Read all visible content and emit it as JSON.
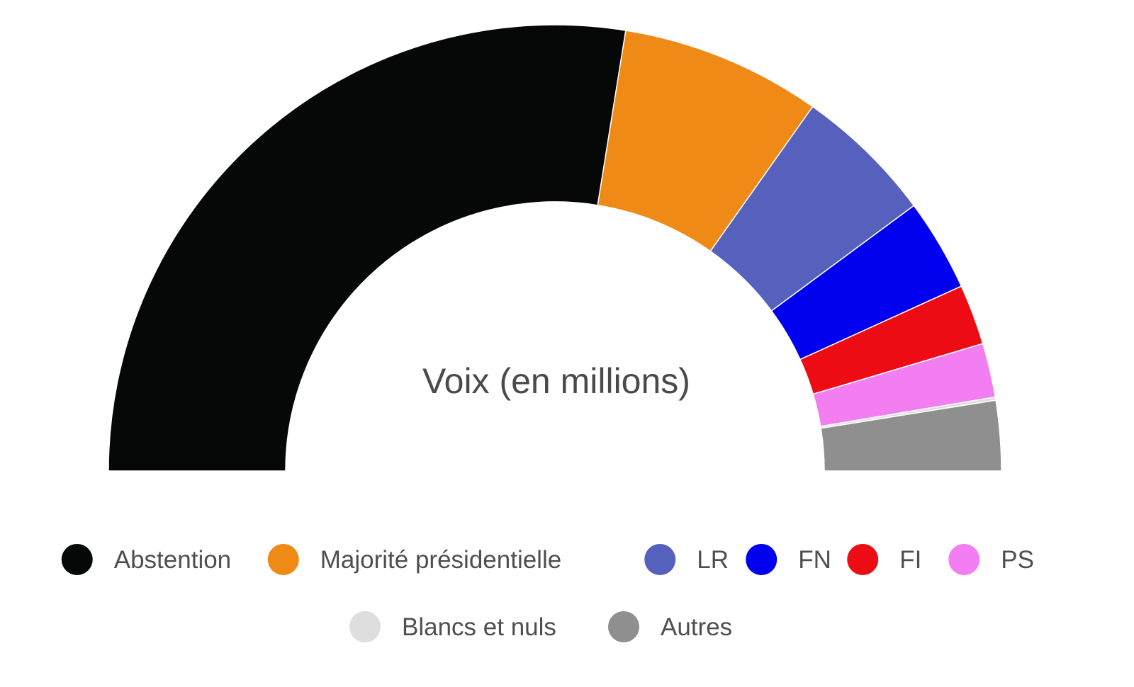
{
  "chart_data": {
    "type": "pie",
    "variant": "half-donut",
    "title": "Voix (en millions)",
    "categories": [
      "Abstention",
      "Majorité présidentielle",
      "LR",
      "FN",
      "FI",
      "PS",
      "Blancs et nuls",
      "Autres"
    ],
    "values": [
      23.9,
      6.3,
      4.4,
      2.9,
      1.9,
      1.7,
      0.1,
      2.2
    ],
    "colors": [
      "#050806",
      "#f08a16",
      "#5661bd",
      "#0000ee",
      "#ee0c14",
      "#f27ef2",
      "#dedede",
      "#8f8f8f"
    ],
    "legend": {
      "position": "bottom",
      "rows": [
        [
          "Abstention",
          "Majorité présidentielle",
          "LR",
          "FN",
          "FI",
          "PS"
        ],
        [
          "Blancs et nuls",
          "Autres"
        ]
      ]
    }
  }
}
